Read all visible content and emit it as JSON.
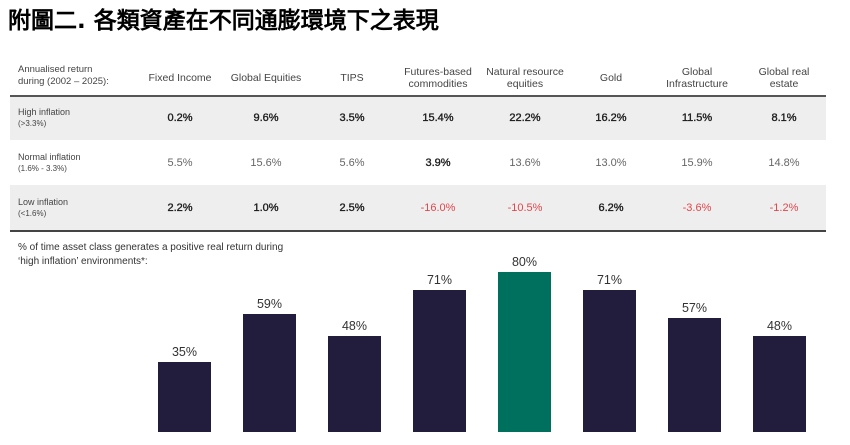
{
  "page": {
    "title": "附圖二. 各類資產在不同通膨環境下之表現"
  },
  "table": {
    "header_label": "Annualised return\nduring (2002 – 2025):",
    "rows": [
      {
        "label": "High inflation",
        "range": "(>3.3%)",
        "values": [
          "0.2%",
          "9.6%",
          "3.5%",
          "15.4%",
          "22.2%",
          "16.2%",
          "11.5%",
          "8.1%"
        ]
      },
      {
        "label": "Normal inflation",
        "range": "(1.6% - 3.3%)",
        "values": [
          "5.5%",
          "15.6%",
          "5.6%",
          "3.9%",
          "13.6%",
          "13.0%",
          "15.9%",
          "14.8%"
        ]
      },
      {
        "label": "Low inflation",
        "range": "(<1.6%)",
        "values": [
          "2.2%",
          "1.0%",
          "2.5%",
          "-16.0%",
          "-10.5%",
          "6.2%",
          "-3.6%",
          "-1.2%"
        ]
      }
    ]
  },
  "colors": {
    "negative_value": "#e0474d"
  },
  "chart_data": {
    "type": "bar",
    "title": "% of time asset class generates a positive real return during\n‘high inflation’ environments*:",
    "categories": [
      "Fixed Income",
      "Global Equities",
      "TIPS",
      "Futures-based\ncommodities",
      "Natural resource\nequities",
      "Gold",
      "Global\nInfrastructure",
      "Global real\nestate"
    ],
    "values": [
      35,
      59,
      48,
      71,
      80,
      71,
      57,
      48
    ],
    "unit": "%",
    "bar_colors": [
      "#221c3d",
      "#221c3d",
      "#221c3d",
      "#221c3d",
      "#00705e",
      "#221c3d",
      "#221c3d",
      "#221c3d"
    ]
  }
}
